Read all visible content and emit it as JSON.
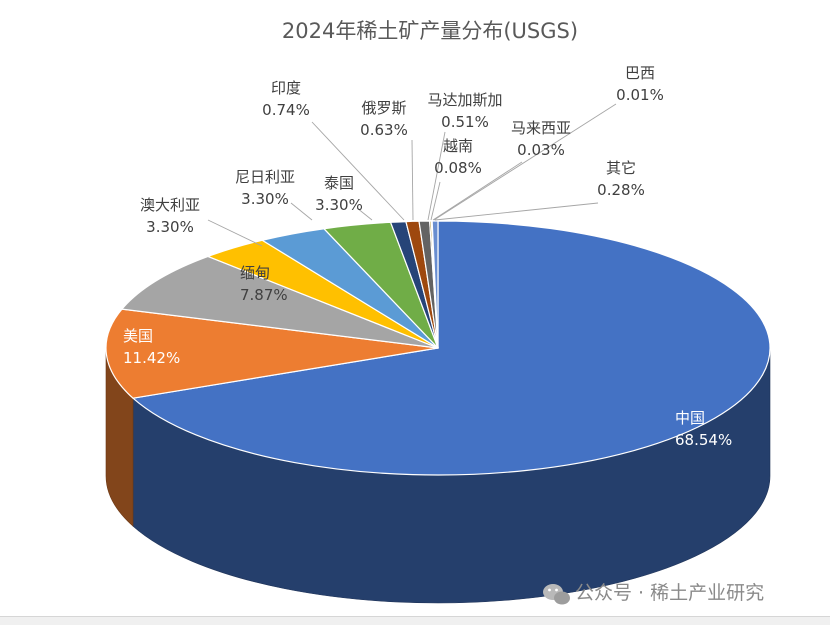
{
  "chart_data": {
    "type": "pie",
    "title": "2024年稀土矿产量分布(USGS)",
    "series": [
      {
        "name": "中国",
        "value": 68.54,
        "label": "68.54%",
        "color": "#4472C4"
      },
      {
        "name": "美国",
        "value": 11.42,
        "label": "11.42%",
        "color": "#ED7D31"
      },
      {
        "name": "缅甸",
        "value": 7.87,
        "label": "7.87%",
        "color": "#A5A5A5"
      },
      {
        "name": "澳大利亚",
        "value": 3.3,
        "label": "3.30%",
        "color": "#FFC000"
      },
      {
        "name": "尼日利亚",
        "value": 3.3,
        "label": "3.30%",
        "color": "#5B9BD5"
      },
      {
        "name": "泰国",
        "value": 3.3,
        "label": "3.30%",
        "color": "#70AD47"
      },
      {
        "name": "印度",
        "value": 0.74,
        "label": "0.74%",
        "color": "#264478"
      },
      {
        "name": "俄罗斯",
        "value": 0.63,
        "label": "0.63%",
        "color": "#9E480E"
      },
      {
        "name": "马达加斯加",
        "value": 0.51,
        "label": "0.51%",
        "color": "#636363"
      },
      {
        "name": "越南",
        "value": 0.08,
        "label": "0.08%",
        "color": "#997300"
      },
      {
        "name": "马来西亚",
        "value": 0.03,
        "label": "0.03%",
        "color": "#255E91"
      },
      {
        "name": "巴西",
        "value": 0.01,
        "label": "0.01%",
        "color": "#43682B"
      },
      {
        "name": "其它",
        "value": 0.28,
        "label": "0.28%",
        "color": "#698ED0"
      }
    ]
  },
  "watermark": {
    "icon": "wechat-icon",
    "text": "公众号 · 稀土产业研究"
  }
}
